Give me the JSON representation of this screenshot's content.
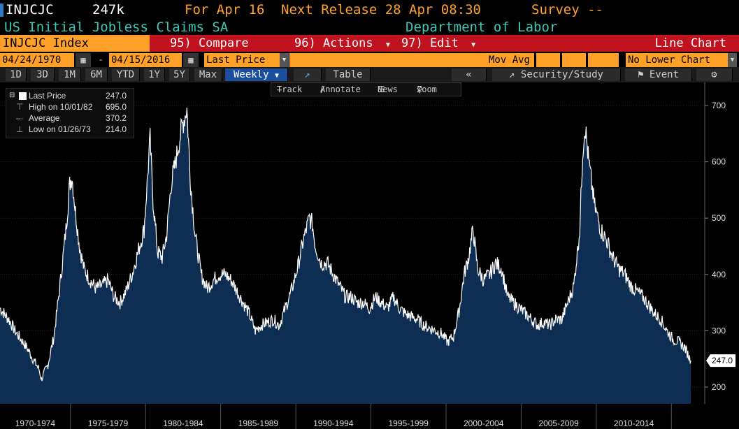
{
  "header": {
    "ticker": "INJCJC",
    "value": "247k",
    "for_label": "For Apr 16",
    "next_release": "Next Release 28 Apr 08:30",
    "survey": "Survey --",
    "description": "US Initial Jobless Claims SA",
    "source": "Department of Labor"
  },
  "toolbar": {
    "security": "INJCJC Index",
    "compare": "95) Compare",
    "actions": "96) Actions",
    "edit": "97) Edit",
    "chart_type": "Line Chart"
  },
  "controls": {
    "start_date": "04/24/1970",
    "dash": "-",
    "end_date": "04/15/2016",
    "field": "Last Price",
    "mov_avg_label": "Mov Avg",
    "lower_chart": "No Lower Chart"
  },
  "range_buttons": [
    "1D",
    "3D",
    "1M",
    "6M",
    "YTD",
    "1Y",
    "5Y",
    "Max"
  ],
  "periodicity": "Weekly",
  "table_label": "Table",
  "security_study": "Security/Study",
  "event_label": "Event",
  "tools": {
    "track": "Track",
    "annotate": "Annotate",
    "news": "News",
    "zoom": "Zoom"
  },
  "legend": {
    "last_label": "Last Price",
    "last_value": "247.0",
    "high_label": "High on 10/01/82",
    "high_value": "695.0",
    "avg_label": "Average",
    "avg_value": "370.2",
    "low_label": "Low on 01/26/73",
    "low_value": "214.0"
  },
  "colors": {
    "accent": "#ffa028",
    "teal": "#3cc9b8",
    "red_bar": "#c1121f",
    "area_fill": "#0e2d52",
    "line": "#ffffff",
    "selected": "#1c4e9e"
  },
  "chart_data": {
    "type": "area",
    "title": "",
    "xlabel": "",
    "ylabel": "",
    "ylim": [
      180,
      720
    ],
    "yticks": [
      200,
      300,
      400,
      500,
      600,
      700
    ],
    "last_value_label": "247.0",
    "xtick_labels": [
      "1970-1974",
      "1975-1979",
      "1980-1984",
      "1985-1989",
      "1990-1994",
      "1995-1999",
      "2000-2004",
      "2005-2009",
      "2010-2014"
    ],
    "series": [
      {
        "x": [
          1970.31,
          1970.6,
          1970.9,
          1971.3,
          1971.7,
          1972.1,
          1972.5,
          1972.9,
          1973.07,
          1973.5,
          1973.9,
          1974.3,
          1974.7,
          1974.95,
          1975.1,
          1975.3,
          1975.6,
          1975.9,
          1976.3,
          1976.7,
          1977.1,
          1977.5,
          1977.9,
          1978.3,
          1978.7,
          1979.1,
          1979.5,
          1979.9,
          1980.1,
          1980.3,
          1980.5,
          1980.8,
          1981.1,
          1981.4,
          1981.7,
          1982.0,
          1982.4,
          1982.75,
          1983.0,
          1983.3,
          1983.7,
          1984.1,
          1984.5,
          1984.9,
          1985.3,
          1985.7,
          1986.1,
          1986.5,
          1986.9,
          1987.3,
          1987.7,
          1988.1,
          1988.5,
          1988.9,
          1989.3,
          1989.7,
          1990.1,
          1990.5,
          1990.9,
          1991.1,
          1991.3,
          1991.7,
          1992.1,
          1992.5,
          1992.9,
          1993.3,
          1993.7,
          1994.1,
          1994.5,
          1994.9,
          1995.3,
          1995.7,
          1996.1,
          1996.5,
          1996.9,
          1997.3,
          1997.7,
          1998.1,
          1998.5,
          1998.9,
          1999.3,
          1999.7,
          2000.1,
          2000.5,
          2000.9,
          2001.2,
          2001.5,
          2001.8,
          2002.1,
          2002.5,
          2002.9,
          2003.3,
          2003.7,
          2004.1,
          2004.5,
          2004.9,
          2005.3,
          2005.7,
          2006.1,
          2006.5,
          2006.9,
          2007.3,
          2007.7,
          2008.1,
          2008.5,
          2008.9,
          2009.1,
          2009.25,
          2009.5,
          2009.9,
          2010.3,
          2010.7,
          2011.1,
          2011.5,
          2011.9,
          2012.3,
          2012.7,
          2013.1,
          2013.5,
          2013.9,
          2014.3,
          2014.7,
          2015.1,
          2015.5,
          2015.9,
          2016.29
        ],
        "values": [
          340,
          330,
          320,
          300,
          285,
          270,
          250,
          232,
          214,
          240,
          290,
          380,
          480,
          560,
          575,
          520,
          450,
          410,
          390,
          375,
          380,
          390,
          360,
          350,
          370,
          400,
          440,
          480,
          560,
          640,
          530,
          440,
          430,
          470,
          560,
          600,
          660,
          695,
          560,
          470,
          400,
          375,
          390,
          400,
          400,
          390,
          370,
          350,
          330,
          300,
          310,
          315,
          320,
          310,
          340,
          370,
          410,
          460,
          500,
          490,
          450,
          420,
          420,
          400,
          380,
          360,
          360,
          350,
          350,
          340,
          360,
          350,
          340,
          360,
          340,
          330,
          325,
          320,
          310,
          305,
          300,
          295,
          280,
          290,
          340,
          400,
          430,
          480,
          410,
          390,
          400,
          420,
          410,
          360,
          350,
          340,
          330,
          320,
          310,
          315,
          310,
          320,
          320,
          350,
          380,
          480,
          620,
          665,
          600,
          520,
          480,
          460,
          430,
          410,
          400,
          380,
          370,
          360,
          345,
          330,
          320,
          300,
          285,
          280,
          270,
          247
        ]
      }
    ]
  }
}
